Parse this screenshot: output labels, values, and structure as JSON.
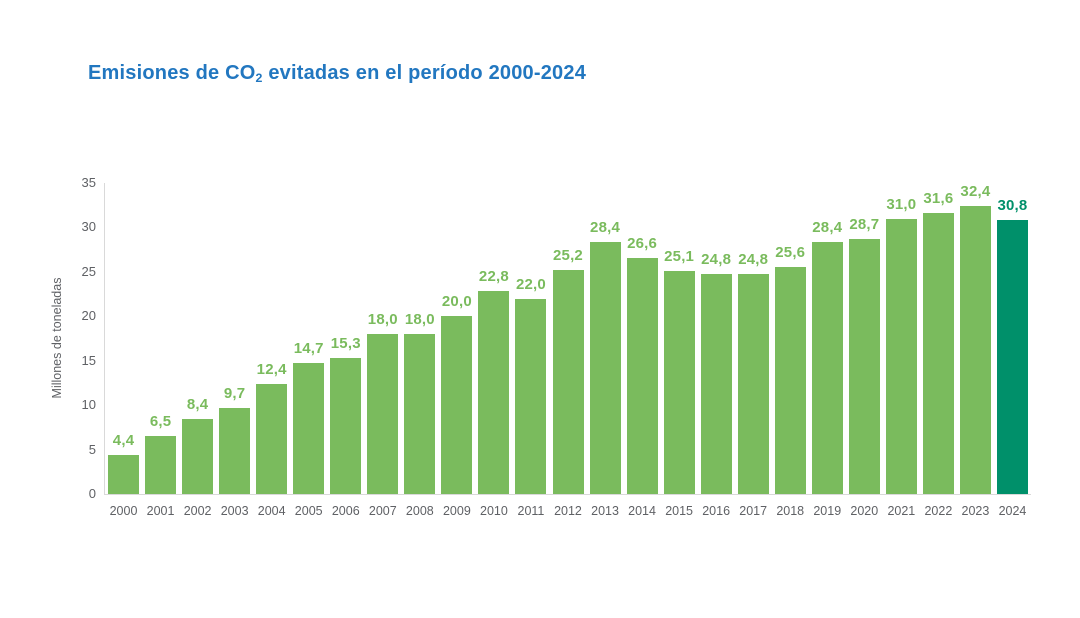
{
  "header": {
    "title_prefix": "Emisiones de CO",
    "title_subscript": "2",
    "title_suffix": " evitadas en el período 2000-2024",
    "title_color": "#2277c0"
  },
  "chart_data": {
    "type": "bar",
    "title": "Emisiones de CO2 evitadas en el período 2000-2024",
    "xlabel": "",
    "ylabel": "Millones de toneladas",
    "ylim": [
      0,
      35
    ],
    "yticks": [
      0,
      5,
      10,
      15,
      20,
      25,
      30,
      35
    ],
    "grid": false,
    "legend": false,
    "categories": [
      "2000",
      "2001",
      "2002",
      "2003",
      "2004",
      "2005",
      "2006",
      "2007",
      "2008",
      "2009",
      "2010",
      "2011",
      "2012",
      "2013",
      "2014",
      "2015",
      "2016",
      "2017",
      "2018",
      "2019",
      "2020",
      "2021",
      "2022",
      "2023",
      "2024"
    ],
    "values": [
      4.4,
      6.5,
      8.4,
      9.7,
      12.4,
      14.7,
      15.3,
      18.0,
      18.0,
      20.0,
      22.8,
      22.0,
      25.2,
      28.4,
      26.6,
      25.1,
      24.8,
      24.8,
      25.6,
      28.4,
      28.7,
      31.0,
      31.6,
      32.4,
      30.8
    ],
    "value_labels": [
      "4,4",
      "6,5",
      "8,4",
      "9,7",
      "12,4",
      "14,7",
      "15,3",
      "18,0",
      "18,0",
      "20,0",
      "22,8",
      "22,0",
      "25,2",
      "28,4",
      "26,6",
      "25,1",
      "24,8",
      "24,8",
      "25,6",
      "28,4",
      "28,7",
      "31,0",
      "31,6",
      "32,4",
      "30,8"
    ],
    "bar_color": "#7abb5d",
    "highlight_color": "#00906a",
    "highlight_index": 24,
    "axis_line_color": "#d9d9d9",
    "axis_text_color": "#5f6165"
  }
}
